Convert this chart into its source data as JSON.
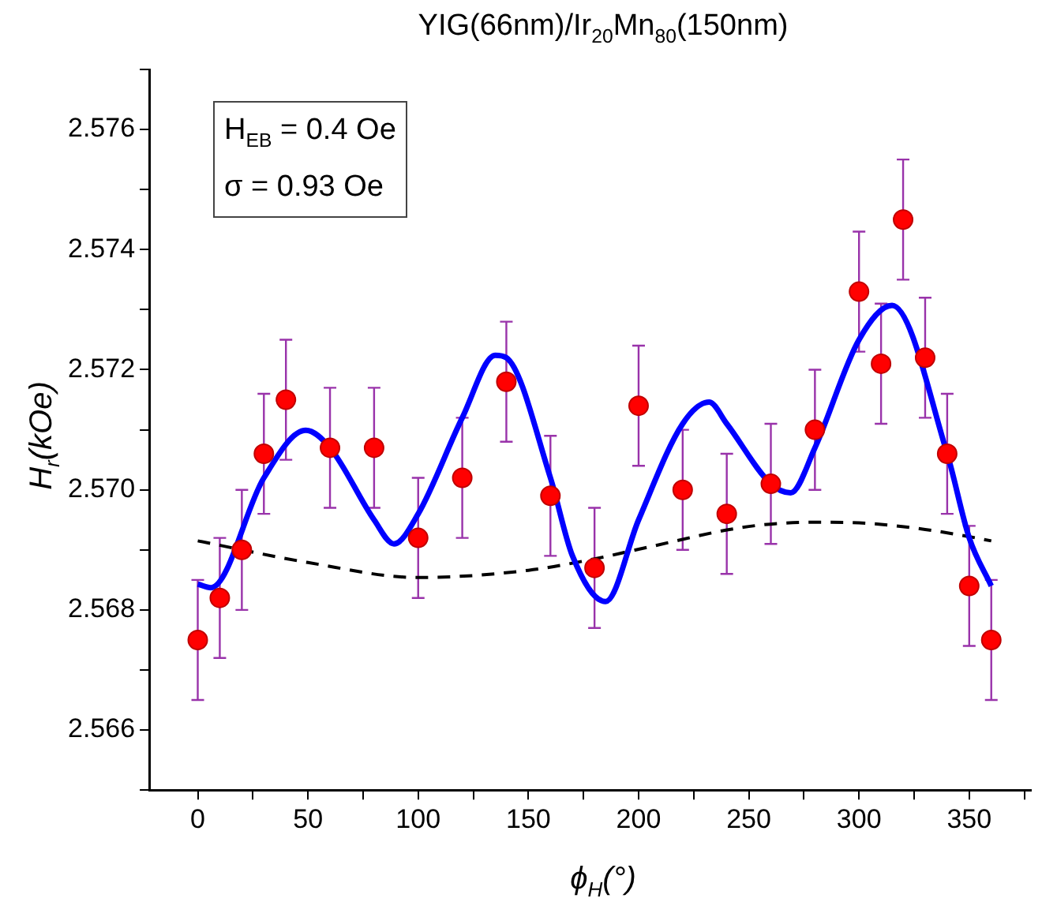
{
  "chart_data": {
    "type": "scatter",
    "title": "YIG(66nm)/Ir$_{20}$Mn$_{80}$(150nm)",
    "xlabel": "ϕ$_{H}$(°)",
    "ylabel": "H$_{r}$(kOe)",
    "annotations": [
      "H$_{EB}$ = 0.4 Oe",
      "σ = 0.93 Oe"
    ],
    "xlim": [
      -22,
      378
    ],
    "xticks": [
      0,
      {
        "value": 25,
        "label": null
      },
      50,
      {
        "value": 75,
        "label": null
      },
      100,
      {
        "value": 125,
        "label": null
      },
      150,
      {
        "value": 175,
        "label": null
      },
      200,
      {
        "value": 225,
        "label": null
      },
      250,
      {
        "value": 275,
        "label": null
      },
      300,
      {
        "value": 325,
        "label": null
      },
      350,
      {
        "value": 375,
        "label": null
      }
    ],
    "ylim": [
      2.565,
      2.577
    ],
    "yticks": [
      {
        "value": 2.565,
        "label": null
      },
      2.566,
      {
        "value": 2.567,
        "label": null
      },
      2.568,
      {
        "value": 2.569,
        "label": null
      },
      {
        "value": 2.57,
        "label": "2.570"
      },
      {
        "value": 2.571,
        "label": null
      },
      2.572,
      {
        "value": 2.573,
        "label": null
      },
      2.574,
      {
        "value": 2.575,
        "label": null
      },
      2.576,
      {
        "value": 2.577,
        "label": null
      }
    ],
    "grid": false,
    "legend": false,
    "series": [
      {
        "color": "#ff0000",
        "marker": "circle",
        "x": [
          0,
          10,
          20,
          30,
          40,
          60,
          80,
          100,
          120,
          140,
          160,
          180,
          200,
          220,
          240,
          260,
          280,
          300,
          310,
          320,
          330,
          340,
          350,
          360
        ],
        "values": [
          2.5675,
          2.5682,
          2.569,
          2.5706,
          2.5715,
          2.5707,
          2.5707,
          2.5692,
          2.5702,
          2.5718,
          2.5699,
          2.5687,
          2.5714,
          2.57,
          2.5696,
          2.5701,
          2.571,
          2.5733,
          2.5721,
          2.5745,
          2.5722,
          2.5706,
          2.5684,
          2.5675
        ],
        "errors": [
          0.001,
          0.001,
          0.001,
          0.001,
          0.001,
          0.001,
          0.001,
          0.001,
          0.001,
          0.001,
          0.001,
          0.001,
          0.001,
          0.001,
          0.001,
          0.001,
          0.001,
          0.001,
          0.001,
          0.001,
          0.001,
          0.001,
          0.001,
          0.001
        ]
      },
      {
        "type": "line",
        "color": "#0000ff",
        "marker": "none",
        "line_style": "solid",
        "x": [
          0,
          6,
          30,
          49,
          60,
          80,
          89,
          100,
          120,
          135,
          140,
          160,
          170,
          185,
          200,
          220,
          232,
          240,
          260,
          269,
          280,
          300,
          315,
          340,
          350,
          360
        ],
        "values": [
          2.56843,
          2.56837,
          2.5702,
          2.57099,
          2.5707,
          2.5695,
          2.5691,
          2.5696,
          2.5712,
          2.57224,
          2.5722,
          2.5702,
          2.5689,
          2.56814,
          2.5695,
          2.5711,
          2.57146,
          2.5711,
          2.5701,
          2.56995,
          2.5707,
          2.5725,
          2.57307,
          2.5706,
          2.5692,
          2.5684
        ]
      },
      {
        "type": "line",
        "color": "#000000",
        "marker": "none",
        "line_style": "dashed",
        "x": [
          0,
          50,
          100,
          150,
          180,
          200,
          250,
          280,
          300,
          330,
          350,
          360
        ],
        "values": [
          2.56915,
          2.56879,
          2.56854,
          2.56866,
          2.56885,
          2.56901,
          2.56939,
          2.56946,
          2.56945,
          2.56934,
          2.56922,
          2.56915
        ]
      }
    ]
  }
}
